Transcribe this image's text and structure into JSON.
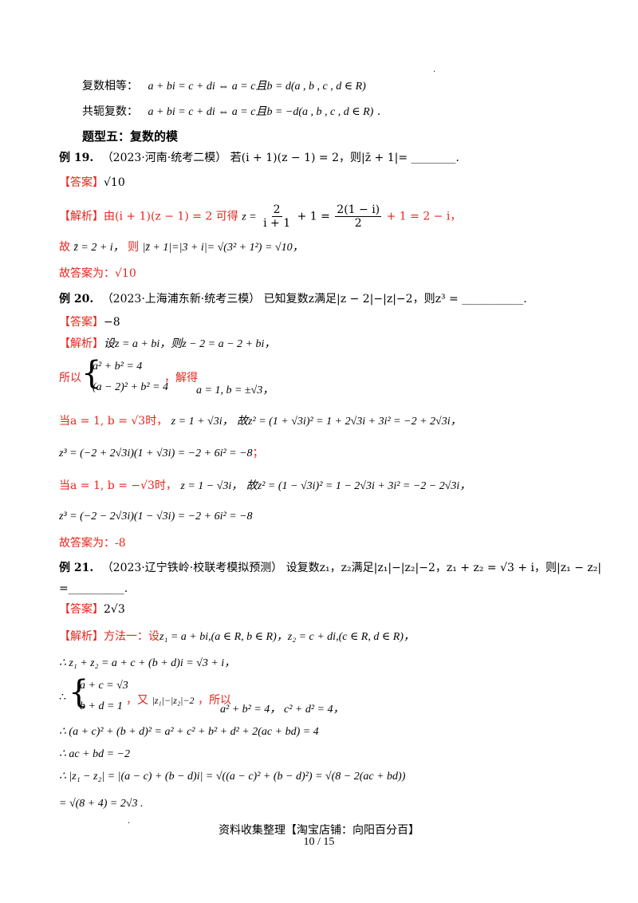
{
  "top_mark": ".",
  "section_equal": {
    "label": "复数相等：",
    "formula": "a + bi = c + di ⇔ a = c且b = d(a , b , c , d ∈ R)"
  },
  "section_conj": {
    "label": "共轭复数：",
    "formula": "a + bi = c + di ⇔ a = c且b = −d(a , b , c , d ∈ R)",
    "tail": "."
  },
  "topic5": "题型五：复数的模",
  "ex19": {
    "label": "例 19.",
    "source": "（2023·河南·统考二模）",
    "question": "若(i + 1)(z − 1) = 2，则|z̄ + 1|= ________.",
    "answer_tag": "【答案】",
    "answer": "√10",
    "analysis_tag": "【解析】",
    "analysis_l1_a": "由(i + 1)(z − 1) = 2",
    "analysis_l1_b": "可得",
    "analysis_l1_c": "z =",
    "analysis_l1_frac1_num": "2",
    "analysis_l1_frac1_den": "i + 1",
    "analysis_l1_d": "+ 1 =",
    "analysis_l1_frac2_num": "2(1 − i)",
    "analysis_l1_frac2_den": "2",
    "analysis_l1_e": "+ 1 = 2 − i，",
    "analysis_l2_a": "故",
    "analysis_l2_b": "z̄ = 2 + i，",
    "analysis_l2_c": "则",
    "analysis_l2_d": "|z̄ + 1|=|3 + i|= √(3² + 1²) = √10，",
    "final": "故答案为：√10"
  },
  "ex20": {
    "label": "例 20.",
    "source": "（2023·上海浦东新·统考三模）",
    "question": "已知复数z满足|z − 2|−|z|−2，则z³ = ___________.",
    "answer_tag": "【答案】",
    "answer": "−8",
    "analysis_tag": "【解析】",
    "analysis_l1": "设z = a + bi，则z − 2 = a − 2 + bi，",
    "so_label": "所以",
    "sys_eq1": "a² + b² = 4",
    "sys_eq2": "(a − 2)² + b² = 4",
    "solve_label": "，解得",
    "solve_result": "a = 1, b = ±√3，",
    "case1_a": "当a = 1, b = √3时，",
    "case1_b": "z = 1 + √3i，",
    "case1_c": "故z² = (1 + √3i)² = 1 + 2√3i + 3i² = −2 + 2√3i，",
    "case1_d": "z³ = (−2 + 2√3i)(1 + √3i) = −2 + 6i² = −8",
    "case1_d_tail": "；",
    "case2_a": "当a = 1, b = −√3时，",
    "case2_b": "z = 1 − √3i，",
    "case2_c": "故z² = (1 − √3i)² = 1 − 2√3i + 3i² = −2 − 2√3i，",
    "case2_d": "z³ = (−2 − 2√3i)(1 − √3i) = −2 + 6i² = −8",
    "final": "故答案为：-8"
  },
  "ex21": {
    "label": "例 21.",
    "source": "（2023·辽宁铁岭·校联考模拟预测）",
    "question_a": "设复数z₁，z₂满足|z₁|−|z₂|−2，z₁ + z₂ = √3 + i，则|z₁ − z₂|",
    "question_b": "=__________.",
    "answer_tag": "【答案】",
    "answer": "2√3",
    "analysis_tag": "【解析】",
    "method": "方法一：设",
    "m_l1_b": "z₁ = a + bi,(a ∈ R, b ∈ R)，z₂ = c + di,(c ∈ R, d ∈ R)，",
    "m_l2": "∴ z₁ + z₂ = a + c + (b + d)i = √3 + i，",
    "sys2_eq1": "a + c = √3",
    "sys2_eq2": "b + d = 1",
    "therefore": "∴",
    "again": "，又",
    "again_b": "|z₁|−|z₂|−2",
    "so_label": "，所以",
    "res_a": "a² + b² = 4，",
    "res_b": "c² + d² = 4，",
    "m_l4": "∴ (a + c)² + (b + d)² = a² + c² + b² + d² + 2(ac + bd) = 4",
    "m_l5": "∴ ac + bd = −2",
    "m_l6": "∴ |z₁ − z₂| = |(a − c) + (b − d)i| = √((a − c)² + (b − d)²) = √(8 − 2(ac + bd))",
    "m_l7": "= √(8 + 4) = 2√3 ."
  },
  "footer": {
    "dot": ".",
    "source": "资料收集整理【淘宝店铺：向阳百分百】",
    "page": "10 / 15"
  }
}
